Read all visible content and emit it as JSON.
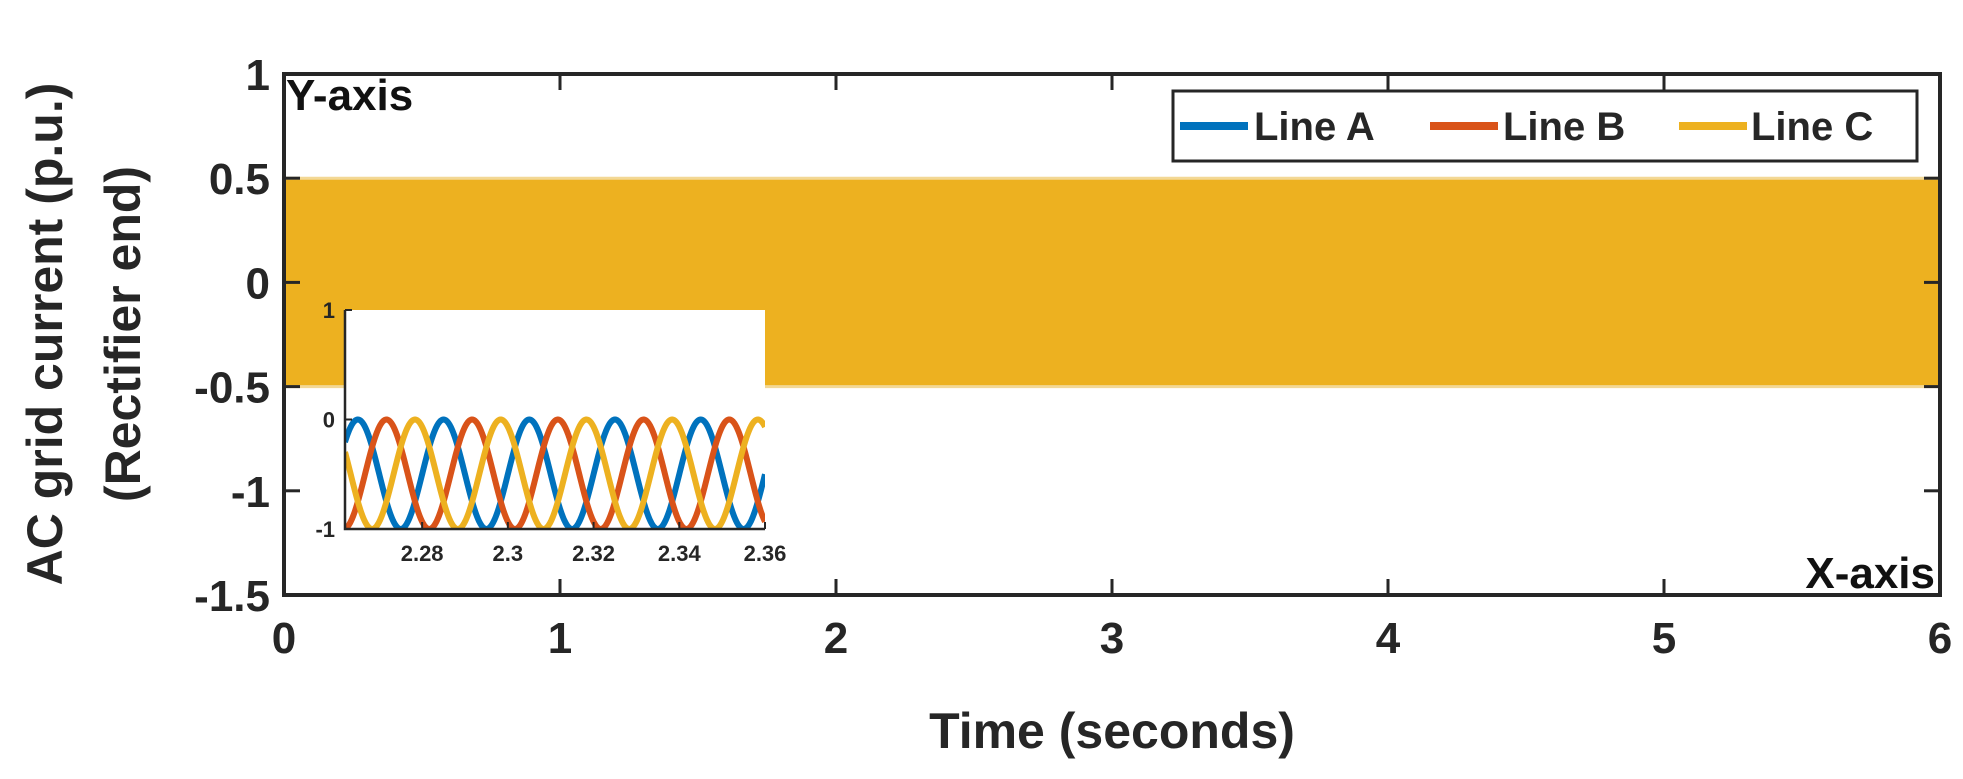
{
  "chart_data": {
    "type": "line",
    "xlabel": "Time (seconds)",
    "ylabel_lines": [
      "AC grid current (p.u.)",
      "(Rectifier end)"
    ],
    "x_corner_label": "X-axis",
    "y_corner_label": "Y-axis",
    "xlim": [
      0,
      6
    ],
    "ylim": [
      -1.5,
      1
    ],
    "xticks": [
      0,
      1,
      2,
      3,
      4,
      5,
      6
    ],
    "xtick_labels": [
      "0",
      "1",
      "2",
      "3",
      "4",
      "5",
      "6"
    ],
    "yticks": [
      1,
      0.5,
      0,
      -0.5,
      -1,
      -1.5
    ],
    "ytick_labels": [
      "1",
      "0.5",
      "0",
      "-0.5",
      "-1",
      "-1.5"
    ],
    "grid": false,
    "legend_position": "top-right",
    "frequency_hz": 50,
    "amplitude": 0.5,
    "series": [
      {
        "name": "Line A",
        "color": "#0072BD",
        "amplitude": 0.5,
        "phase_deg": 0
      },
      {
        "name": "Line B",
        "color": "#D95319",
        "amplitude": 0.5,
        "phase_deg": -120
      },
      {
        "name": "Line C",
        "color": "#EDB120",
        "amplitude": 0.5,
        "phase_deg": 120
      }
    ],
    "inset": {
      "xlim": [
        2.262,
        2.36
      ],
      "ylim": [
        -1,
        1
      ],
      "xticks": [
        2.28,
        2.3,
        2.32,
        2.34,
        2.36
      ],
      "xtick_labels": [
        "2.28",
        "2.3",
        "2.32",
        "2.34",
        "2.36"
      ],
      "yticks": [
        1,
        0,
        -1
      ],
      "ytick_labels": [
        "1",
        "0",
        "-1"
      ]
    }
  }
}
